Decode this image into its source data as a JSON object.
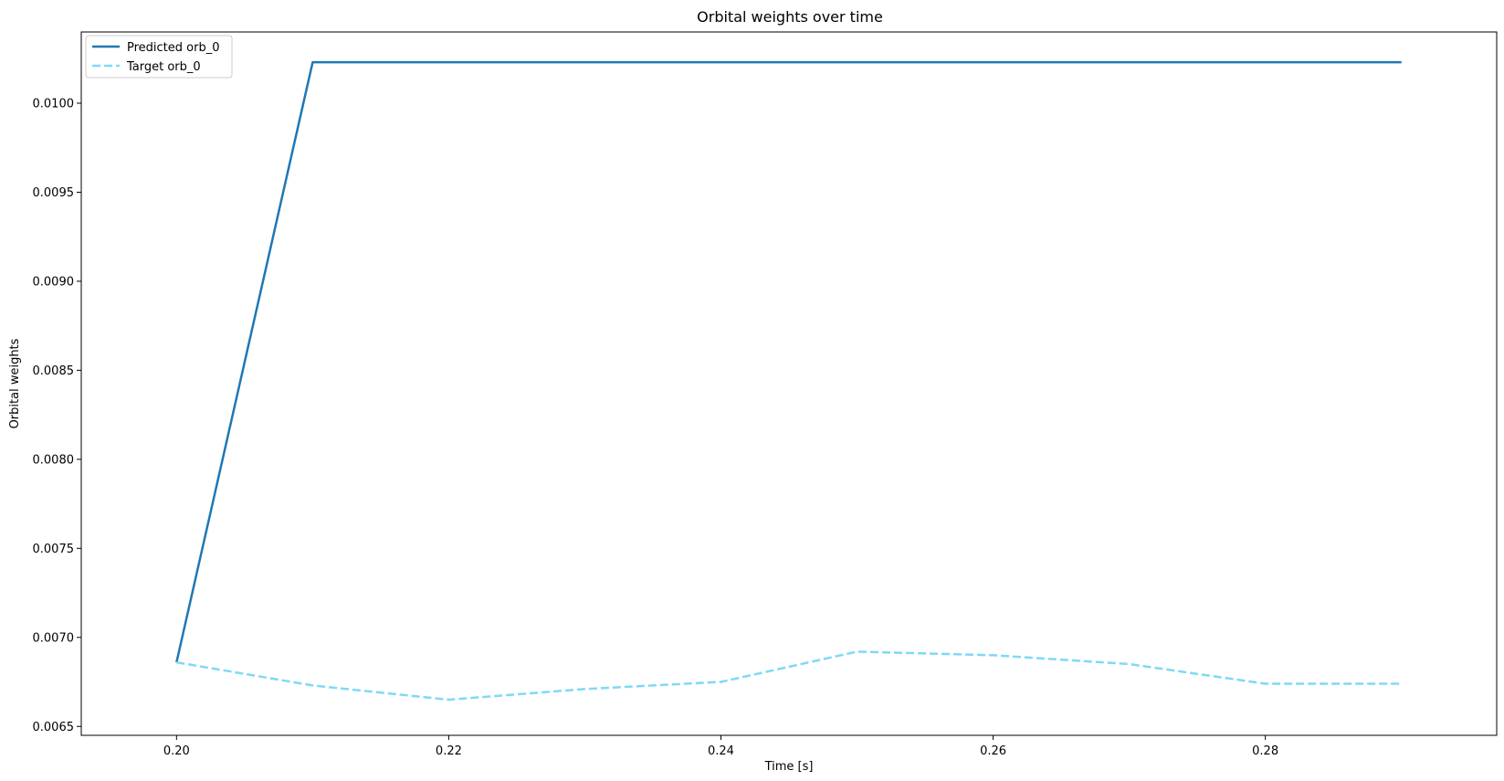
{
  "chart_data": {
    "type": "line",
    "title": "Orbital weights over time",
    "xlabel": "Time [s]",
    "ylabel": "Orbital weights",
    "xlim": [
      0.193,
      0.297
    ],
    "ylim": [
      0.00645,
      0.0104
    ],
    "x": [
      0.2,
      0.21,
      0.22,
      0.23,
      0.24,
      0.25,
      0.26,
      0.27,
      0.28,
      0.29
    ],
    "x_ticks": [
      "0.20",
      "0.22",
      "0.24",
      "0.26",
      "0.28"
    ],
    "y_ticks": [
      "0.0065",
      "0.0070",
      "0.0075",
      "0.0080",
      "0.0085",
      "0.0090",
      "0.0095",
      "0.0100"
    ],
    "grid": false,
    "legend_position": "top-left",
    "series": [
      {
        "name": "Predicted orb_0",
        "color": "#1f77b4",
        "style": "solid",
        "values": [
          0.00686,
          0.01023,
          0.01023,
          0.01023,
          0.01023,
          0.01023,
          0.01023,
          0.01023,
          0.01023,
          0.01023
        ]
      },
      {
        "name": "Target orb_0",
        "color": "#7fd9f5",
        "style": "dashed",
        "values": [
          0.00686,
          0.00673,
          0.00665,
          0.00671,
          0.00675,
          0.00692,
          0.0069,
          0.00685,
          0.00674,
          0.00674
        ]
      }
    ]
  }
}
